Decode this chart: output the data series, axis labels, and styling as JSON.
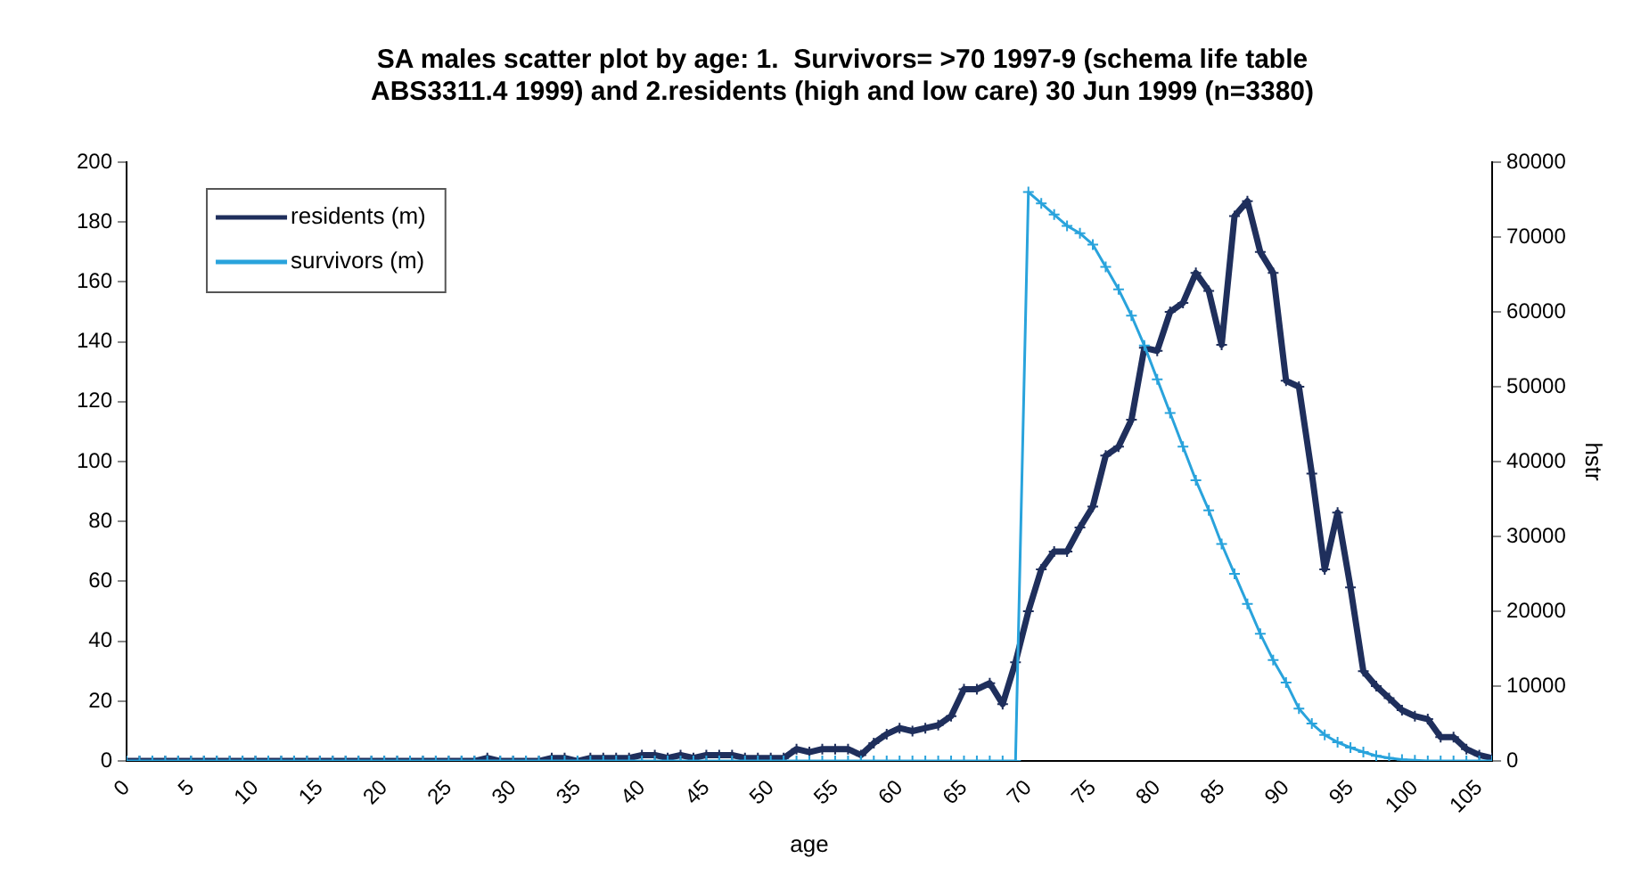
{
  "chart_data": {
    "type": "line",
    "title": [
      "SA males scatter plot by age: 1.  Survivors= >70 1997-9 (schema life table",
      "ABS3311.4 1999) and 2.residents (high and low care) 30 Jun 1999 (n=3380)"
    ],
    "xlabel": "age",
    "y2label": "hstr",
    "x": [
      0,
      1,
      2,
      3,
      4,
      5,
      6,
      7,
      8,
      9,
      10,
      11,
      12,
      13,
      14,
      15,
      16,
      17,
      18,
      19,
      20,
      21,
      22,
      23,
      24,
      25,
      26,
      27,
      28,
      29,
      30,
      31,
      32,
      33,
      34,
      35,
      36,
      37,
      38,
      39,
      40,
      41,
      42,
      43,
      44,
      45,
      46,
      47,
      48,
      49,
      50,
      51,
      52,
      53,
      54,
      55,
      56,
      57,
      58,
      59,
      60,
      61,
      62,
      63,
      64,
      65,
      66,
      67,
      68,
      69,
      70,
      71,
      72,
      73,
      74,
      75,
      76,
      77,
      78,
      79,
      80,
      81,
      82,
      83,
      84,
      85,
      86,
      87,
      88,
      89,
      90,
      91,
      92,
      93,
      94,
      95,
      96,
      97,
      98,
      99,
      100,
      101,
      102,
      103,
      104,
      105,
      106
    ],
    "series": [
      {
        "name": "residents (m)",
        "color": "#1f2f5c",
        "values": [
          0,
          0,
          0,
          0,
          0,
          0,
          0,
          0,
          0,
          0,
          0,
          0,
          0,
          0,
          0,
          0,
          0,
          0,
          0,
          0,
          0,
          0,
          0,
          0,
          0,
          0,
          0,
          0,
          1,
          0,
          0,
          0,
          0,
          1,
          1,
          0,
          1,
          1,
          1,
          1,
          2,
          2,
          1,
          2,
          1,
          2,
          2,
          2,
          1,
          1,
          1,
          1,
          4,
          3,
          4,
          4,
          4,
          2,
          6,
          9,
          11,
          10,
          11,
          12,
          15,
          24,
          24,
          26,
          19,
          33,
          50,
          64,
          70,
          70,
          78,
          85,
          102,
          105,
          114,
          138,
          137,
          150,
          153,
          163,
          157,
          139,
          182,
          187,
          170,
          163,
          127,
          125,
          96,
          64,
          83,
          58,
          30,
          25,
          21,
          17,
          15,
          14,
          8,
          8,
          4,
          2,
          1
        ]
      },
      {
        "name": "survivors (m)",
        "color": "#29a3dc",
        "axis": "y2",
        "values": [
          0,
          0,
          0,
          0,
          0,
          0,
          0,
          0,
          0,
          0,
          0,
          0,
          0,
          0,
          0,
          0,
          0,
          0,
          0,
          0,
          0,
          0,
          0,
          0,
          0,
          0,
          0,
          0,
          0,
          0,
          0,
          0,
          0,
          0,
          0,
          0,
          0,
          0,
          0,
          0,
          0,
          0,
          0,
          0,
          0,
          0,
          0,
          0,
          0,
          0,
          0,
          0,
          0,
          0,
          0,
          0,
          0,
          0,
          0,
          0,
          0,
          0,
          0,
          0,
          0,
          0,
          0,
          0,
          0,
          0,
          76000,
          74500,
          73000,
          71500,
          70500,
          69000,
          66000,
          63000,
          59500,
          55500,
          51000,
          46500,
          42000,
          37500,
          33500,
          29000,
          25000,
          21000,
          17000,
          13500,
          10500,
          7000,
          5000,
          3500,
          2500,
          1800,
          1200,
          700,
          400,
          200,
          100,
          0,
          0,
          0,
          0,
          0,
          0
        ]
      }
    ],
    "xlim": [
      0,
      106
    ],
    "xticks": [
      0,
      5,
      10,
      15,
      20,
      25,
      30,
      35,
      40,
      45,
      50,
      55,
      60,
      65,
      70,
      75,
      80,
      85,
      90,
      95,
      100,
      105
    ],
    "ylim": [
      0,
      200
    ],
    "yticks": [
      0,
      20,
      40,
      60,
      80,
      100,
      120,
      140,
      160,
      180,
      200
    ],
    "y2lim": [
      0,
      80000
    ],
    "y2ticks": [
      0,
      10000,
      20000,
      30000,
      40000,
      50000,
      60000,
      70000,
      80000
    ],
    "legend": "top left",
    "marker": "cross",
    "grid": false
  }
}
